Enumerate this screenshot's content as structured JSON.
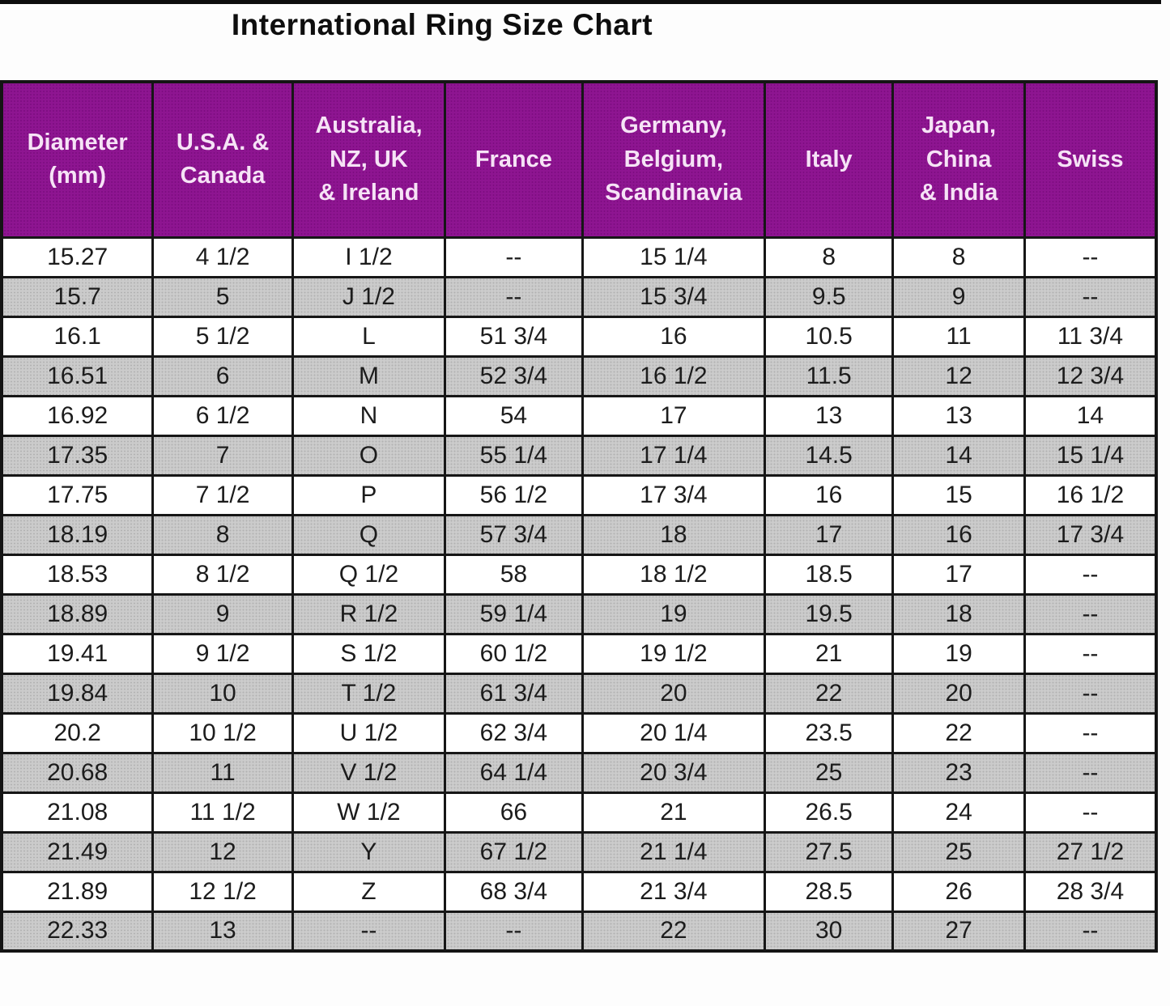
{
  "title": "International Ring Size Chart",
  "chart_data": {
    "type": "table",
    "title": "International Ring Size Chart",
    "columns": [
      "Diameter\n(mm)",
      "U.S.A. &\nCanada",
      "Australia,\nNZ, UK\n& Ireland",
      "France",
      "Germany,\nBelgium,\nScandinavia",
      "Italy",
      "Japan,\nChina\n& India",
      "Swiss"
    ],
    "rows": [
      [
        "15.27",
        "4 1/2",
        "I 1/2",
        "--",
        "15 1/4",
        "8",
        "8",
        "--"
      ],
      [
        "15.7",
        "5",
        "J 1/2",
        "--",
        "15 3/4",
        "9.5",
        "9",
        "--"
      ],
      [
        "16.1",
        "5 1/2",
        "L",
        "51 3/4",
        "16",
        "10.5",
        "11",
        "11 3/4"
      ],
      [
        "16.51",
        "6",
        "M",
        "52 3/4",
        "16 1/2",
        "11.5",
        "12",
        "12 3/4"
      ],
      [
        "16.92",
        "6 1/2",
        "N",
        "54",
        "17",
        "13",
        "13",
        "14"
      ],
      [
        "17.35",
        "7",
        "O",
        "55 1/4",
        "17 1/4",
        "14.5",
        "14",
        "15 1/4"
      ],
      [
        "17.75",
        "7 1/2",
        "P",
        "56 1/2",
        "17 3/4",
        "16",
        "15",
        "16 1/2"
      ],
      [
        "18.19",
        "8",
        "Q",
        "57 3/4",
        "18",
        "17",
        "16",
        "17 3/4"
      ],
      [
        "18.53",
        "8 1/2",
        "Q 1/2",
        "58",
        "18 1/2",
        "18.5",
        "17",
        "--"
      ],
      [
        "18.89",
        "9",
        "R 1/2",
        "59 1/4",
        "19",
        "19.5",
        "18",
        "--"
      ],
      [
        "19.41",
        "9 1/2",
        "S 1/2",
        "60 1/2",
        "19 1/2",
        "21",
        "19",
        "--"
      ],
      [
        "19.84",
        "10",
        "T 1/2",
        "61 3/4",
        "20",
        "22",
        "20",
        "--"
      ],
      [
        "20.2",
        "10 1/2",
        "U 1/2",
        "62 3/4",
        "20 1/4",
        "23.5",
        "22",
        "--"
      ],
      [
        "20.68",
        "11",
        "V 1/2",
        "64 1/4",
        "20 3/4",
        "25",
        "23",
        "--"
      ],
      [
        "21.08",
        "11 1/2",
        "W 1/2",
        "66",
        "21",
        "26.5",
        "24",
        "--"
      ],
      [
        "21.49",
        "12",
        "Y",
        "67 1/2",
        "21 1/4",
        "27.5",
        "25",
        "27 1/2"
      ],
      [
        "21.89",
        "12 1/2",
        "Z",
        "68 3/4",
        "21 3/4",
        "28.5",
        "26",
        "28 3/4"
      ],
      [
        "22.33",
        "13",
        "--",
        "--",
        "22",
        "30",
        "27",
        "--"
      ]
    ]
  },
  "colors": {
    "header_background": "#8e1591",
    "header_text": "#f6e3f6",
    "alt_row_background": "#cbcbcb",
    "row_background": "#ffffff",
    "border": "#161616",
    "title_text": "#0e0e0e"
  }
}
